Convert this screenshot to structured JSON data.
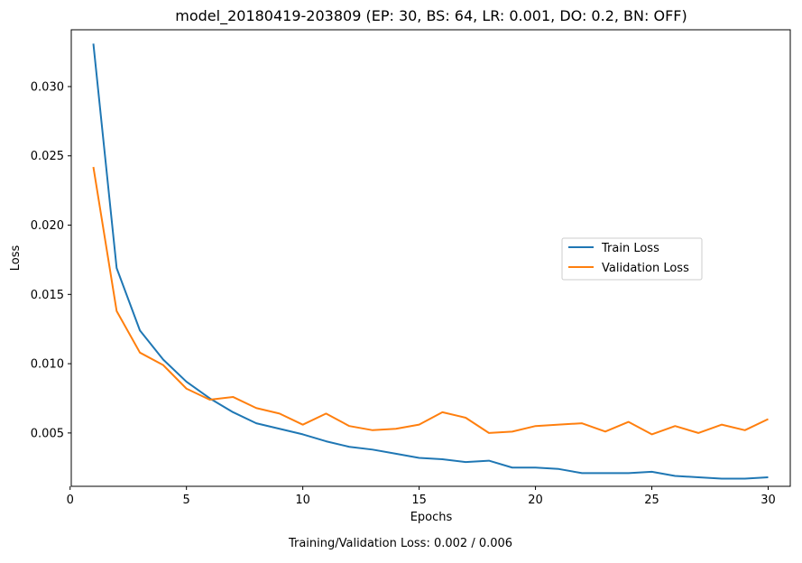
{
  "chart_data": {
    "type": "line",
    "title": "model_20180419-203809 (EP: 30, BS: 64, LR: 0.001, DO: 0.2, BN: OFF)",
    "xlabel": "Epochs",
    "ylabel": "Loss",
    "footer": "Training/Validation Loss: 0.002 / 0.006",
    "xlim": [
      0.05,
      30.95
    ],
    "ylim": [
      0.00115,
      0.0341
    ],
    "xticks": [
      0,
      5,
      10,
      15,
      20,
      25,
      30
    ],
    "yticks": [
      0.005,
      0.01,
      0.015,
      0.02,
      0.025,
      0.03
    ],
    "ytick_labels": [
      "0.005",
      "0.010",
      "0.015",
      "0.020",
      "0.025",
      "0.030"
    ],
    "xtick_labels": [
      "0",
      "5",
      "10",
      "15",
      "20",
      "25",
      "30"
    ],
    "grid": false,
    "legend_position": "center-right",
    "x": [
      1,
      2,
      3,
      4,
      5,
      6,
      7,
      8,
      9,
      10,
      11,
      12,
      13,
      14,
      15,
      16,
      17,
      18,
      19,
      20,
      21,
      22,
      23,
      24,
      25,
      26,
      27,
      28,
      29,
      30
    ],
    "series": [
      {
        "name": "Train Loss",
        "color": "#1f77b4",
        "values": [
          0.0331,
          0.0169,
          0.0124,
          0.0103,
          0.0087,
          0.0075,
          0.0065,
          0.0057,
          0.0053,
          0.0049,
          0.0044,
          0.004,
          0.0038,
          0.0035,
          0.0032,
          0.0031,
          0.0029,
          0.003,
          0.0025,
          0.0025,
          0.0024,
          0.0021,
          0.0021,
          0.0021,
          0.0022,
          0.0019,
          0.0018,
          0.0017,
          0.0017,
          0.0018
        ]
      },
      {
        "name": "Validation Loss",
        "color": "#ff7f0e",
        "values": [
          0.0242,
          0.0138,
          0.0108,
          0.0099,
          0.0082,
          0.0074,
          0.0076,
          0.0068,
          0.0064,
          0.0056,
          0.0064,
          0.0055,
          0.0052,
          0.0053,
          0.0056,
          0.0065,
          0.0061,
          0.005,
          0.0051,
          0.0055,
          0.0056,
          0.0057,
          0.0051,
          0.0058,
          0.0049,
          0.0055,
          0.005,
          0.0056,
          0.0052,
          0.006
        ]
      }
    ]
  }
}
